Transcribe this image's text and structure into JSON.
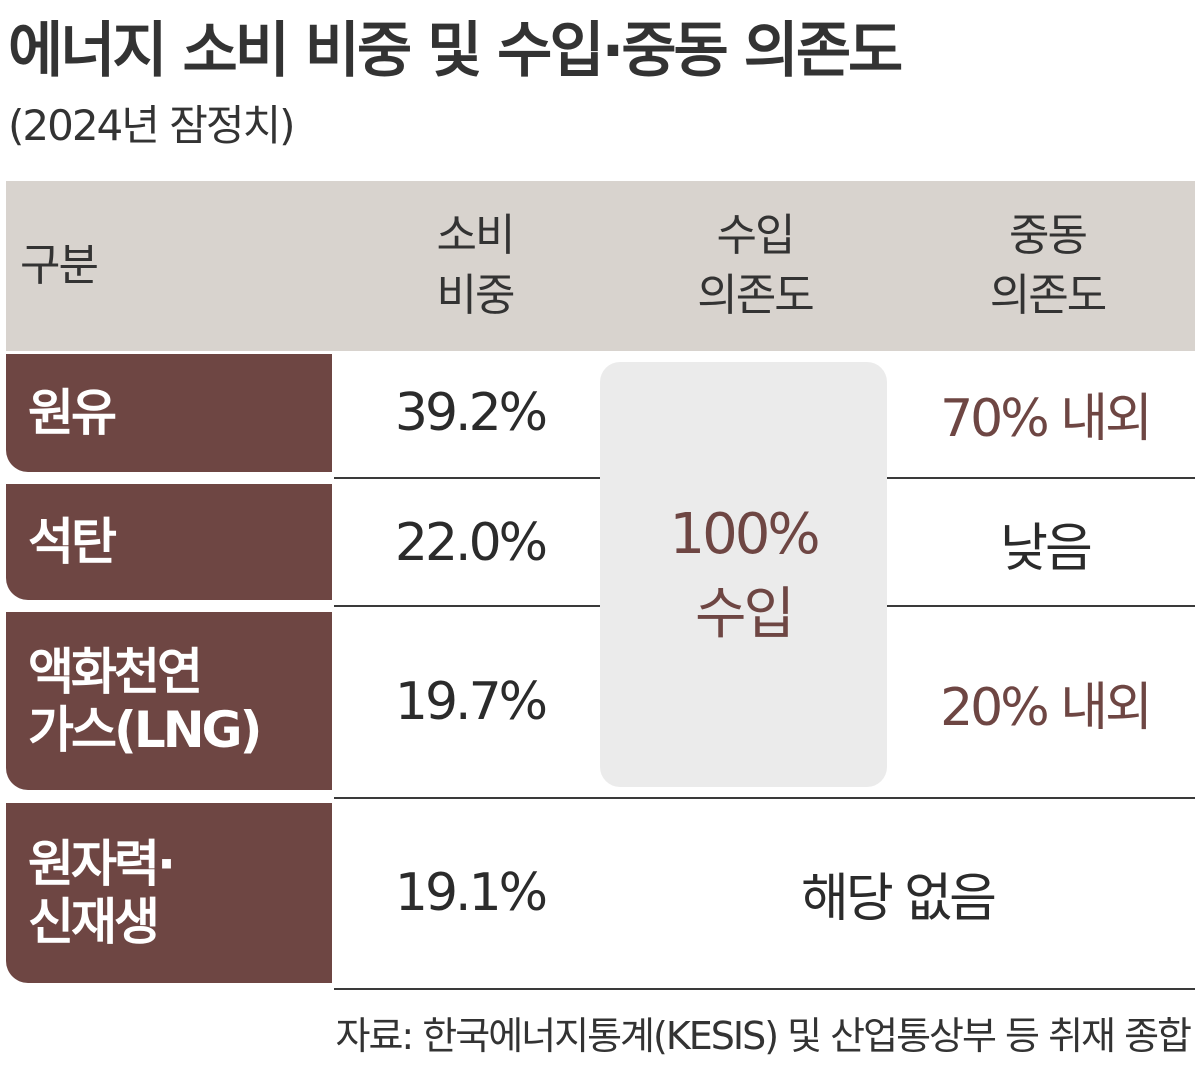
{
  "title": "에너지 소비 비중 및 수입·중동 의존도",
  "subtitle": "(2024년 잠정치)",
  "header": {
    "col0": "구분",
    "col1_line1": "소비",
    "col1_line2": "비중",
    "col2_line1": "수입",
    "col2_line2": "의존도",
    "col3_line1": "중동",
    "col3_line2": "의존도"
  },
  "rows": [
    {
      "label_line1": "원유",
      "label_line2": "",
      "consumption": "39.2%",
      "middle_east": "70% 내외"
    },
    {
      "label_line1": "석탄",
      "label_line2": "",
      "consumption": "22.0%",
      "middle_east": "낮음"
    },
    {
      "label_line1": "액화천연",
      "label_line2": "가스(LNG)",
      "consumption": "19.7%",
      "middle_east": "20% 내외"
    },
    {
      "label_line1": "원자력·",
      "label_line2": "신재생",
      "consumption": "19.1%",
      "middle_east": ""
    }
  ],
  "import_dependency": {
    "line1": "100%",
    "line2": "수입"
  },
  "not_applicable": "해당 없음",
  "source": "자료: 한국에너지통계(KESIS) 및 산업통상부 등 취재 종합",
  "colors": {
    "label_bg": "#6e4643",
    "header_bg": "#d8d3ce",
    "highlight_text": "#6e4643",
    "box_bg": "#ebebeb"
  }
}
